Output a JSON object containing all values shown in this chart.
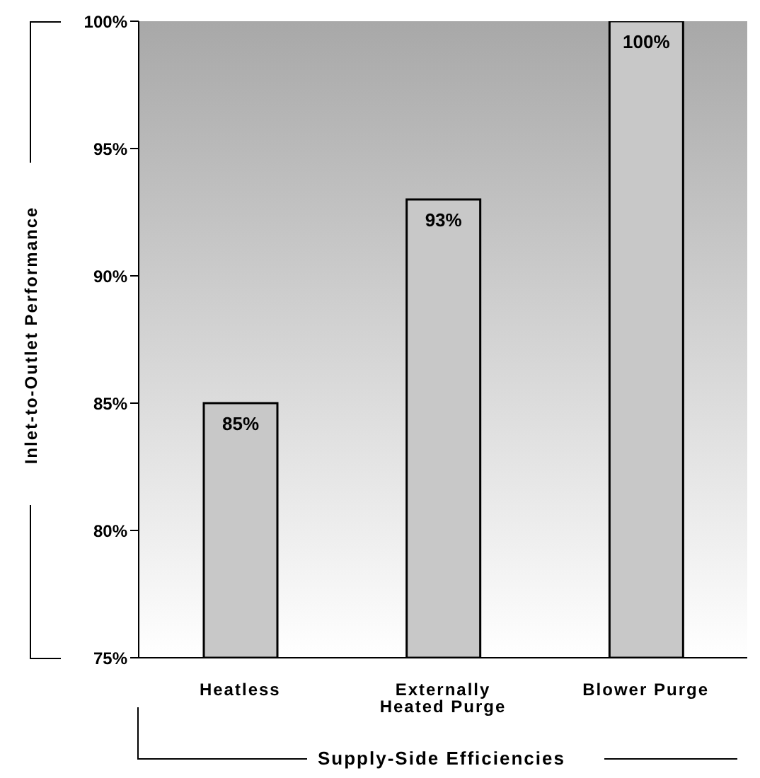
{
  "chart_data": {
    "type": "bar",
    "xlabel": "Supply-Side Efficiencies",
    "ylabel": "Inlet-to-Outlet Performance",
    "categories": [
      "Heatless",
      "Externally Heated Purge",
      "Blower Purge"
    ],
    "values": [
      85,
      93,
      100
    ],
    "value_labels": [
      "85%",
      "93%",
      "100%"
    ],
    "color": "#c8c8c8",
    "ylim": [
      75,
      100
    ],
    "yticks": [
      {
        "value": 75,
        "label": "75%"
      },
      {
        "value": 80,
        "label": "80%"
      },
      {
        "value": 85,
        "label": "85%"
      },
      {
        "value": 90,
        "label": "90%"
      },
      {
        "value": 95,
        "label": "95%"
      },
      {
        "value": 100,
        "label": "100%"
      }
    ],
    "grid": false,
    "legend": false
  }
}
